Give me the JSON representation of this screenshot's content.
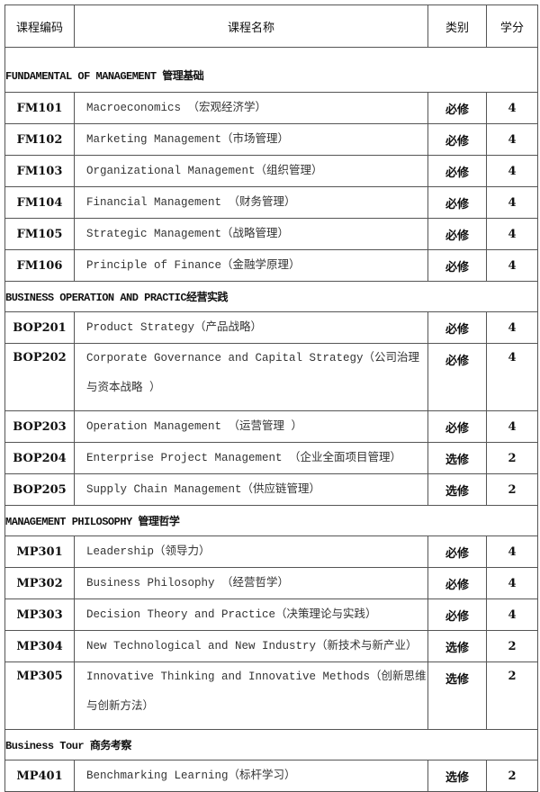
{
  "header": {
    "code": "课程编码",
    "name": "课程名称",
    "type": "类别",
    "credit": "学分"
  },
  "sections": [
    {
      "title": "FUNDAMENTAL OF MANAGEMENT 管理基础",
      "courses": [
        {
          "code": "FM101",
          "name": "Macroeconomics  （宏观经济学）",
          "type": "必修",
          "credit": "4"
        },
        {
          "code": "FM102",
          "name": "Marketing Management（市场管理）",
          "type": "必修",
          "credit": "4"
        },
        {
          "code": "FM103",
          "name": "Organizational Management（组织管理）",
          "type": "必修",
          "credit": "4"
        },
        {
          "code": "FM104",
          "name": "Financial Management  （财务管理）",
          "type": "必修",
          "credit": "4"
        },
        {
          "code": "FM105",
          "name": "Strategic Management（战略管理）",
          "type": "必修",
          "credit": "4"
        },
        {
          "code": "FM106",
          "name": "Principle of Finance（金融学原理）",
          "type": "必修",
          "credit": "4"
        }
      ]
    },
    {
      "title": "BUSINESS OPERATION AND PRACTIC经营实践",
      "courses": [
        {
          "code": "BOP201",
          "name": " Product Strategy（产品战略）",
          "type": "必修",
          "credit": "4"
        },
        {
          "code": "BOP202",
          "name": "Corporate Governance and Capital Strategy（公司治理与资本战略 ）",
          "type": "必修",
          "credit": "4"
        },
        {
          "code": "BOP203",
          "name": "Operation Management  （运营管理 ）",
          "type": "必修",
          "credit": "4"
        },
        {
          "code": "BOP204",
          "name": "Enterprise Project Management  （企业全面项目管理）",
          "type": "选修",
          "credit": "2"
        },
        {
          "code": "BOP205",
          "name": "Supply Chain Management（供应链管理）",
          "type": "选修",
          "credit": "2"
        }
      ]
    },
    {
      "title": "MANAGEMENT PHILOSOPHY 管理哲学",
      "courses": [
        {
          "code": "MP301",
          "name": "Leadership（领导力）",
          "type": "必修",
          "credit": "4"
        },
        {
          "code": "MP302",
          "name": "Business Philosophy  （经营哲学）",
          "type": "必修",
          "credit": "4"
        },
        {
          "code": "MP303",
          "name": "Decision Theory and Practice（决策理论与实践）",
          "type": "必修",
          "credit": "4"
        },
        {
          "code": "MP304",
          "name": "New Technological and New Industry（新技术与新产业）",
          "type": "选修",
          "credit": "2"
        },
        {
          "code": "MP305",
          "name": "Innovative Thinking and Innovative Methods（创新思维与创新方法）",
          "type": "选修",
          "credit": "2"
        }
      ]
    },
    {
      "title": "Business Tour  商务考察",
      "courses": [
        {
          "code": "MP401",
          "name": "Benchmarking Learning（标杆学习）",
          "type": "选修",
          "credit": "2"
        }
      ]
    }
  ]
}
